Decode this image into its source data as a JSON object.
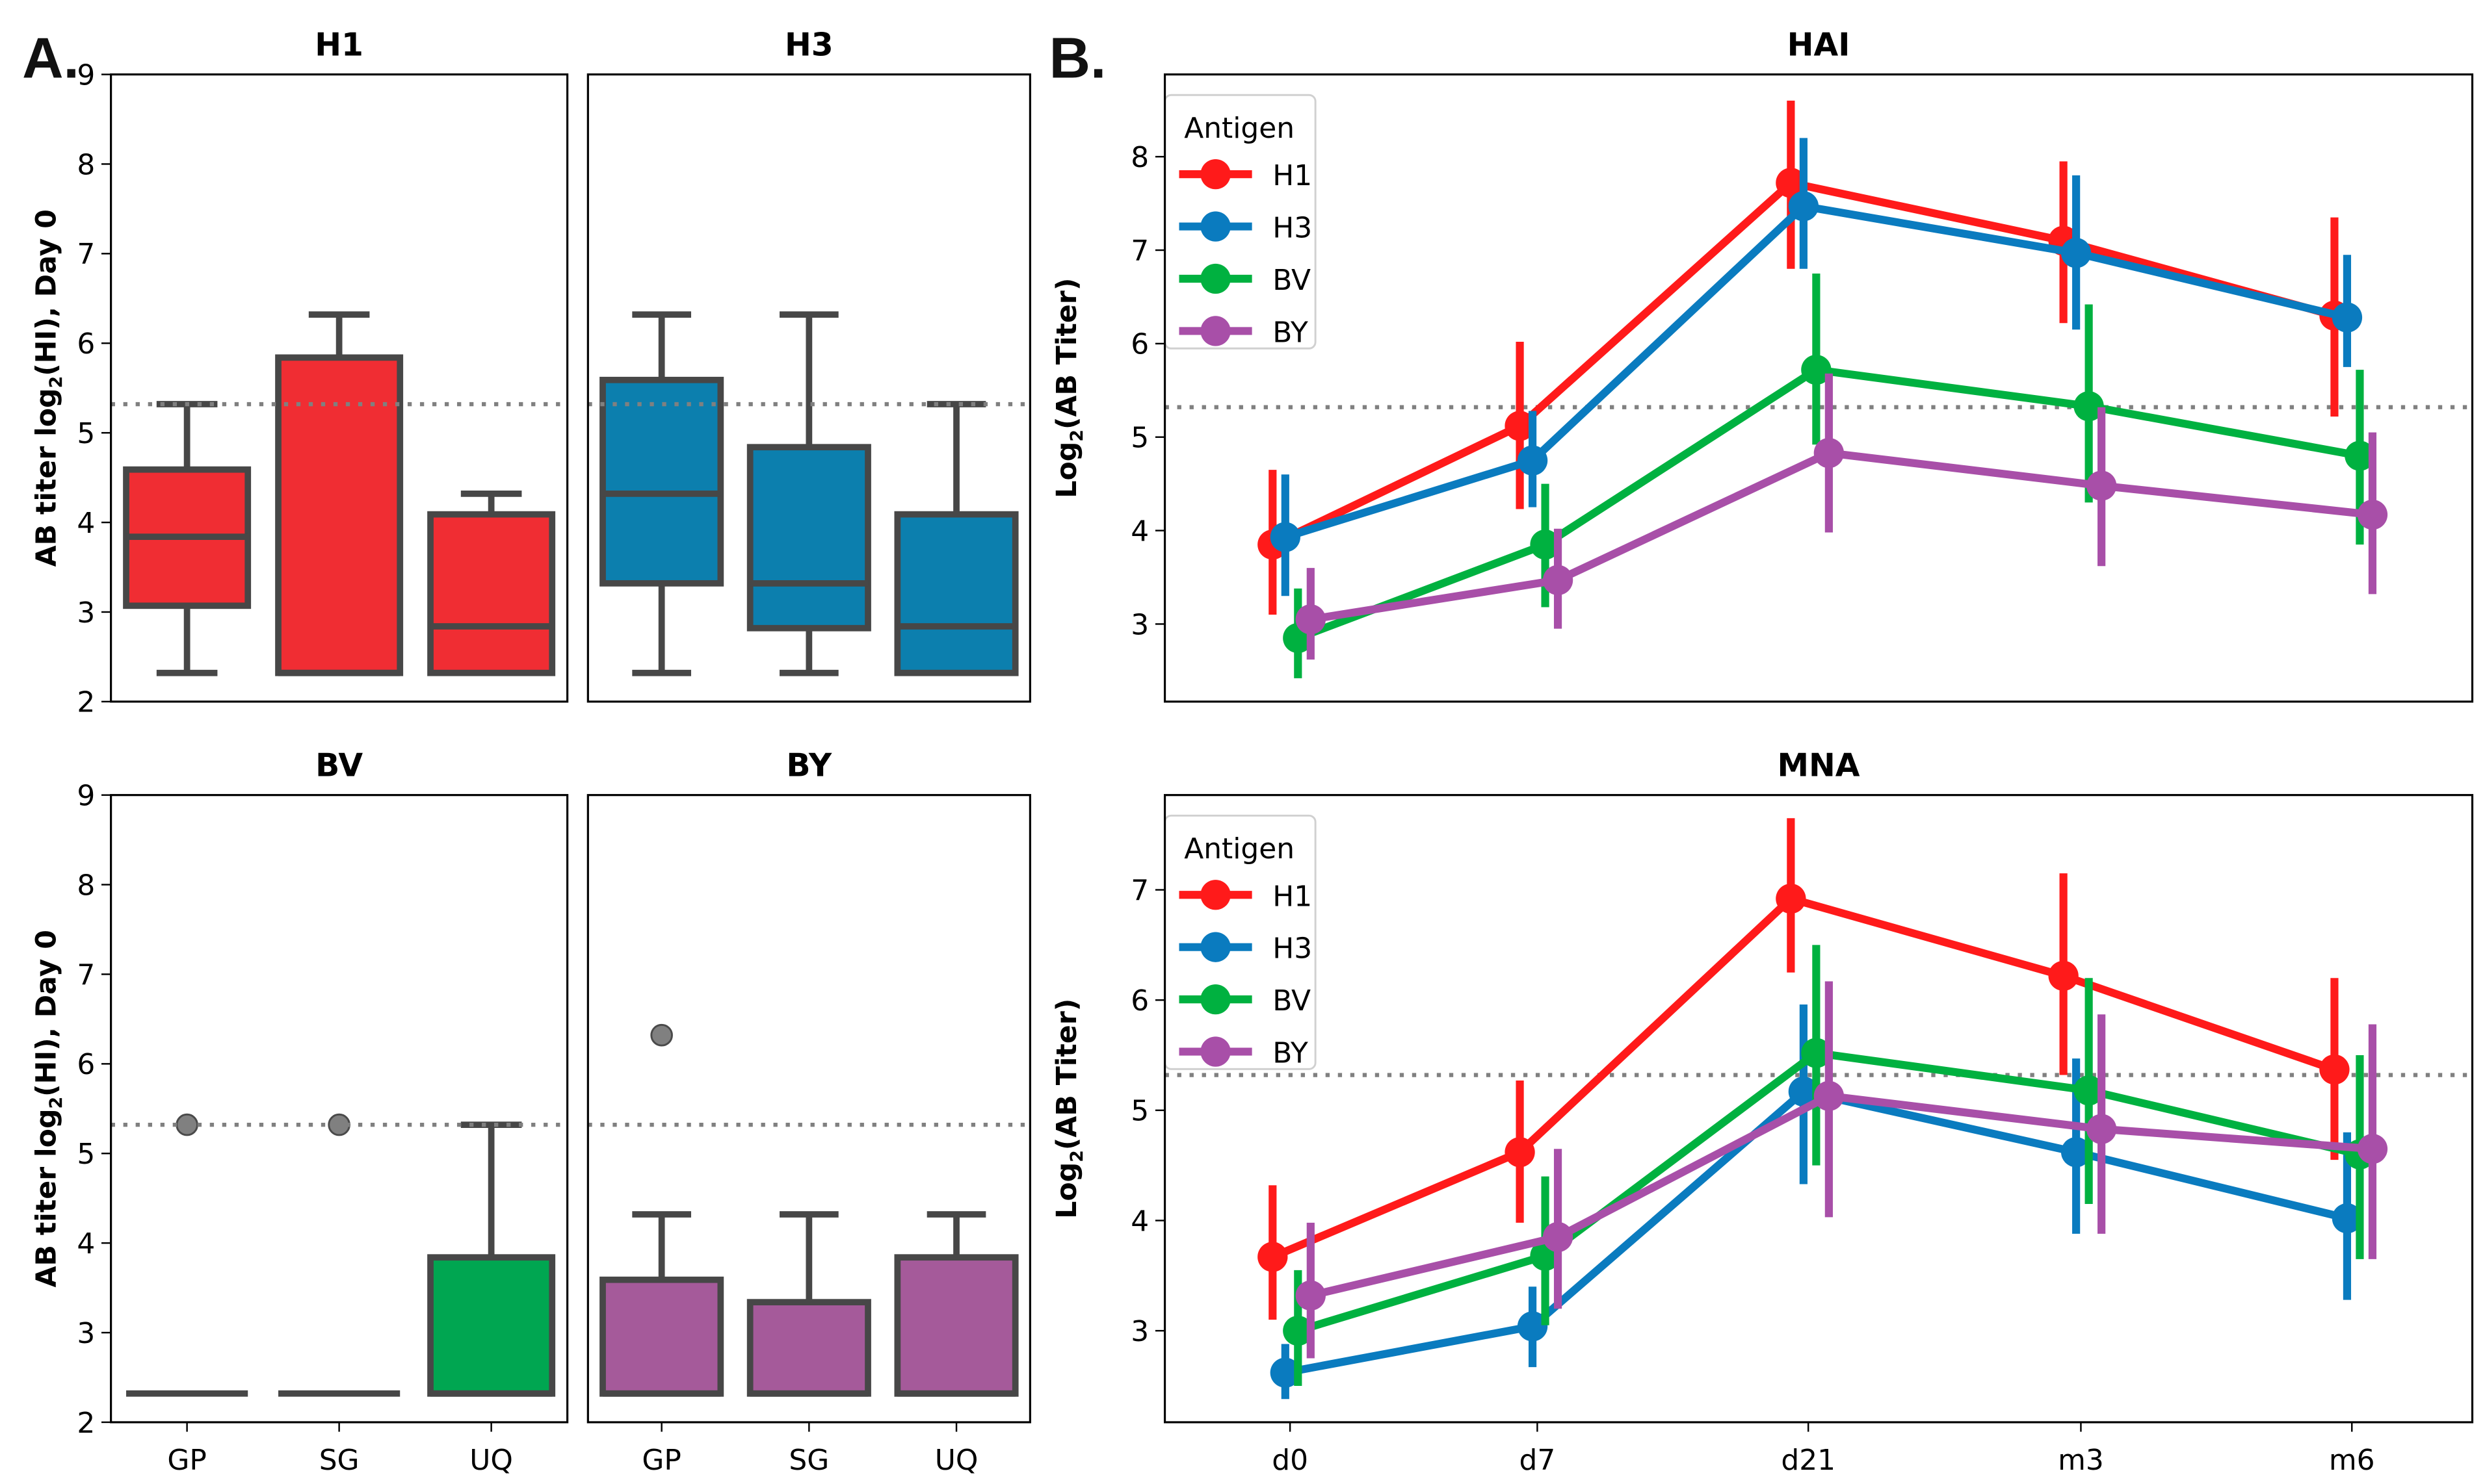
{
  "figure": {
    "panel_a_label": "A.",
    "panel_b_label": "B."
  },
  "colors": {
    "H1": "#f02d33",
    "H3": "#0c7fae",
    "BV": "#00a651",
    "BY": "#a55a9a",
    "line_H1": "#ff1a1a",
    "line_H3": "#0a7bbf",
    "line_BV": "#00b140",
    "line_BY": "#a84fa8",
    "box_edge": "#474747",
    "outlier": "#808080",
    "reference_line": "#808080"
  },
  "chart_data": [
    {
      "type": "box",
      "id": "box-H1",
      "title": "H1",
      "ylabel": "AB titer log2(HI), Day 0",
      "ylim": [
        2,
        9
      ],
      "yticks": [
        "2",
        "3",
        "4",
        "5",
        "6",
        "7",
        "8",
        "9"
      ],
      "categories": [
        "GP",
        "SG",
        "UQ"
      ],
      "show_xticklabels": false,
      "reference_line": 5.32,
      "color_key": "H1",
      "boxes": [
        {
          "category": "GP",
          "whislo": 2.32,
          "q1": 3.07,
          "med": 3.84,
          "q3": 4.59,
          "whishi": 5.32,
          "fliers": []
        },
        {
          "category": "SG",
          "whislo": 2.32,
          "q1": 2.32,
          "med": 2.32,
          "q3": 5.84,
          "whishi": 6.32,
          "fliers": []
        },
        {
          "category": "UQ",
          "whislo": 2.32,
          "q1": 2.32,
          "med": 2.84,
          "q3": 4.09,
          "whishi": 4.32,
          "fliers": []
        }
      ]
    },
    {
      "type": "box",
      "id": "box-H3",
      "title": "H3",
      "ylabel": "",
      "ylim": [
        2,
        9
      ],
      "yticks": [],
      "categories": [
        "GP",
        "SG",
        "UQ"
      ],
      "show_xticklabels": false,
      "reference_line": 5.32,
      "color_key": "H3",
      "boxes": [
        {
          "category": "GP",
          "whislo": 2.32,
          "q1": 3.32,
          "med": 4.32,
          "q3": 5.59,
          "whishi": 6.32,
          "fliers": []
        },
        {
          "category": "SG",
          "whislo": 2.32,
          "q1": 2.82,
          "med": 3.32,
          "q3": 4.84,
          "whishi": 6.32,
          "fliers": []
        },
        {
          "category": "UQ",
          "whislo": 2.32,
          "q1": 2.32,
          "med": 2.84,
          "q3": 4.09,
          "whishi": 5.32,
          "fliers": []
        }
      ]
    },
    {
      "type": "box",
      "id": "box-BV",
      "title": "BV",
      "ylabel": "AB titer log2(HI), Day 0",
      "ylim": [
        2,
        9
      ],
      "yticks": [
        "2",
        "3",
        "4",
        "5",
        "6",
        "7",
        "8",
        "9"
      ],
      "categories": [
        "GP",
        "SG",
        "UQ"
      ],
      "show_xticklabels": true,
      "reference_line": 5.32,
      "color_key": "BV",
      "boxes": [
        {
          "category": "GP",
          "whislo": 2.32,
          "q1": 2.32,
          "med": 2.32,
          "q3": 2.32,
          "whishi": 2.32,
          "fliers": [
            5.32
          ]
        },
        {
          "category": "SG",
          "whislo": 2.32,
          "q1": 2.32,
          "med": 2.32,
          "q3": 2.32,
          "whishi": 2.32,
          "fliers": [
            5.32
          ]
        },
        {
          "category": "UQ",
          "whislo": 2.32,
          "q1": 2.32,
          "med": 2.32,
          "q3": 3.84,
          "whishi": 5.32,
          "fliers": []
        }
      ]
    },
    {
      "type": "box",
      "id": "box-BY",
      "title": "BY",
      "ylabel": "",
      "ylim": [
        2,
        9
      ],
      "yticks": [],
      "categories": [
        "GP",
        "SG",
        "UQ"
      ],
      "show_xticklabels": true,
      "reference_line": 5.32,
      "color_key": "BY",
      "boxes": [
        {
          "category": "GP",
          "whislo": 2.32,
          "q1": 2.32,
          "med": 2.32,
          "q3": 3.59,
          "whishi": 4.32,
          "fliers": [
            6.32
          ]
        },
        {
          "category": "SG",
          "whislo": 2.32,
          "q1": 2.32,
          "med": 2.32,
          "q3": 3.34,
          "whishi": 4.32,
          "fliers": []
        },
        {
          "category": "UQ",
          "whislo": 2.32,
          "q1": 2.32,
          "med": 2.32,
          "q3": 3.84,
          "whishi": 4.32,
          "fliers": []
        }
      ]
    },
    {
      "type": "line",
      "id": "line-HAI",
      "title": "HAI",
      "ylabel": "Log2(AB Titer)",
      "ylim": [
        2.17,
        8.88
      ],
      "yticks": [
        "3",
        "4",
        "5",
        "6",
        "7",
        "8"
      ],
      "x": [
        "d0",
        "d7",
        "d21",
        "m3",
        "m6"
      ],
      "show_xticklabels": false,
      "reference_line": 5.32,
      "legend": {
        "title": "Antigen",
        "placement": "top-left"
      },
      "series": [
        {
          "name": "H1",
          "values": [
            3.85,
            5.12,
            7.72,
            7.1,
            6.3
          ],
          "ci_low": [
            3.1,
            4.23,
            6.8,
            6.22,
            5.22
          ],
          "ci_high": [
            4.65,
            6.02,
            8.6,
            7.95,
            7.35
          ]
        },
        {
          "name": "H3",
          "values": [
            3.93,
            4.75,
            7.47,
            6.97,
            6.28
          ],
          "ci_low": [
            3.3,
            4.25,
            6.8,
            6.15,
            5.75
          ],
          "ci_high": [
            4.6,
            5.28,
            8.2,
            7.8,
            6.95
          ]
        },
        {
          "name": "BV",
          "values": [
            2.85,
            3.85,
            5.72,
            5.33,
            4.8
          ],
          "ci_low": [
            2.42,
            3.18,
            4.92,
            4.3,
            3.85
          ],
          "ci_high": [
            3.38,
            4.5,
            6.75,
            6.42,
            5.72
          ]
        },
        {
          "name": "BY",
          "values": [
            3.05,
            3.47,
            4.83,
            4.48,
            4.17
          ],
          "ci_low": [
            2.62,
            2.95,
            3.98,
            3.62,
            3.32
          ],
          "ci_high": [
            3.6,
            4.02,
            5.68,
            5.32,
            5.05
          ]
        }
      ]
    },
    {
      "type": "line",
      "id": "line-MNA",
      "title": "MNA",
      "ylabel": "Log2(AB Titer)",
      "ylim": [
        2.17,
        7.86
      ],
      "yticks": [
        "3",
        "4",
        "5",
        "6",
        "7"
      ],
      "x": [
        "d0",
        "d7",
        "d21",
        "m3",
        "m6"
      ],
      "show_xticklabels": true,
      "reference_line": 5.32,
      "legend": {
        "title": "Antigen",
        "placement": "top-left"
      },
      "series": [
        {
          "name": "H1",
          "values": [
            3.67,
            4.62,
            6.92,
            6.22,
            5.37
          ],
          "ci_low": [
            3.1,
            3.98,
            6.25,
            5.32,
            4.55
          ],
          "ci_high": [
            4.32,
            5.27,
            7.65,
            7.15,
            6.2
          ]
        },
        {
          "name": "H3",
          "values": [
            2.62,
            3.04,
            5.17,
            4.62,
            4.02
          ],
          "ci_low": [
            2.38,
            2.67,
            4.33,
            3.88,
            3.28
          ],
          "ci_high": [
            2.88,
            3.4,
            5.96,
            5.47,
            4.8
          ]
        },
        {
          "name": "BV",
          "values": [
            3.0,
            3.68,
            5.52,
            5.18,
            4.6
          ],
          "ci_low": [
            2.5,
            3.05,
            4.5,
            4.15,
            3.65
          ],
          "ci_high": [
            3.55,
            4.4,
            6.5,
            6.2,
            5.5
          ]
        },
        {
          "name": "BY",
          "values": [
            3.32,
            3.85,
            5.13,
            4.83,
            4.65
          ],
          "ci_low": [
            2.75,
            3.2,
            4.03,
            3.88,
            3.65
          ],
          "ci_high": [
            3.98,
            4.65,
            6.17,
            5.87,
            5.78
          ]
        }
      ]
    }
  ]
}
